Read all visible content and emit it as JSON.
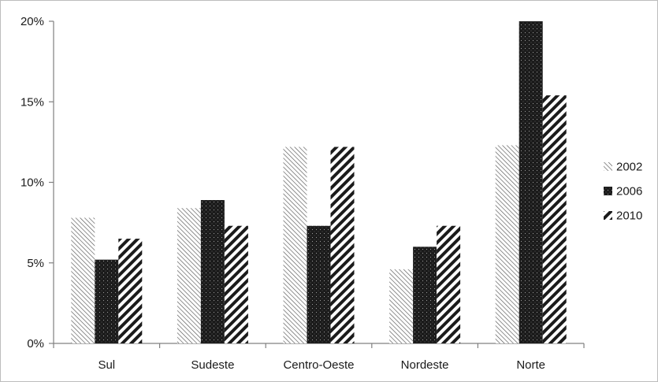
{
  "chart_data": {
    "type": "bar",
    "categories": [
      "Sul",
      "Sudeste",
      "Centro-Oeste",
      "Nordeste",
      "Norte"
    ],
    "series": [
      {
        "name": "2002",
        "values": [
          7.8,
          8.4,
          12.2,
          4.6,
          12.3
        ],
        "pattern": "diag-light"
      },
      {
        "name": "2006",
        "values": [
          5.2,
          8.9,
          7.3,
          6.0,
          20.0
        ],
        "pattern": "dots-dark"
      },
      {
        "name": "2010",
        "values": [
          6.5,
          7.3,
          12.2,
          7.3,
          15.4
        ],
        "pattern": "diag-bold"
      }
    ],
    "ylim": [
      0,
      20
    ],
    "yticks": [
      0,
      5,
      10,
      15,
      20
    ],
    "ytick_labels": [
      "0%",
      "5%",
      "10%",
      "15%",
      "20%"
    ],
    "legend_position": "right",
    "grid": false
  }
}
